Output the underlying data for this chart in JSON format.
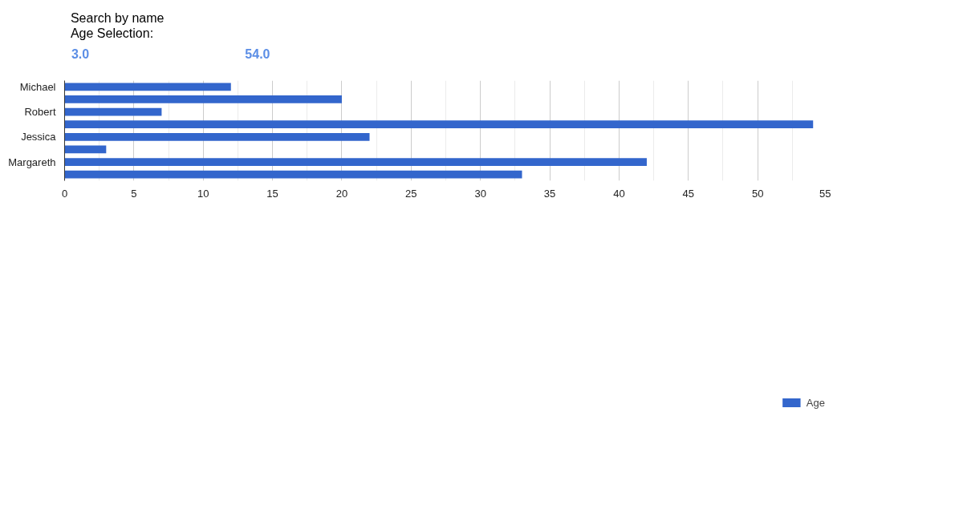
{
  "chart_data": {
    "type": "bar",
    "orientation": "horizontal",
    "categories": [
      "Michael",
      null,
      "Robert",
      null,
      "Jessica",
      null,
      "Margareth",
      null
    ],
    "series": [
      {
        "name": "Age",
        "color": "#3366cc",
        "values": [
          12,
          20,
          7,
          54,
          22,
          3,
          42,
          33
        ]
      }
    ],
    "xlim": [
      0,
      55
    ],
    "xticks": [
      0,
      5,
      10,
      15,
      20,
      25,
      30,
      35,
      40,
      45,
      50,
      55
    ],
    "grid": "x",
    "legend": "bottom",
    "annotations": [
      "Search by name",
      "Age Selection:",
      "3.0",
      "54.0"
    ]
  }
}
